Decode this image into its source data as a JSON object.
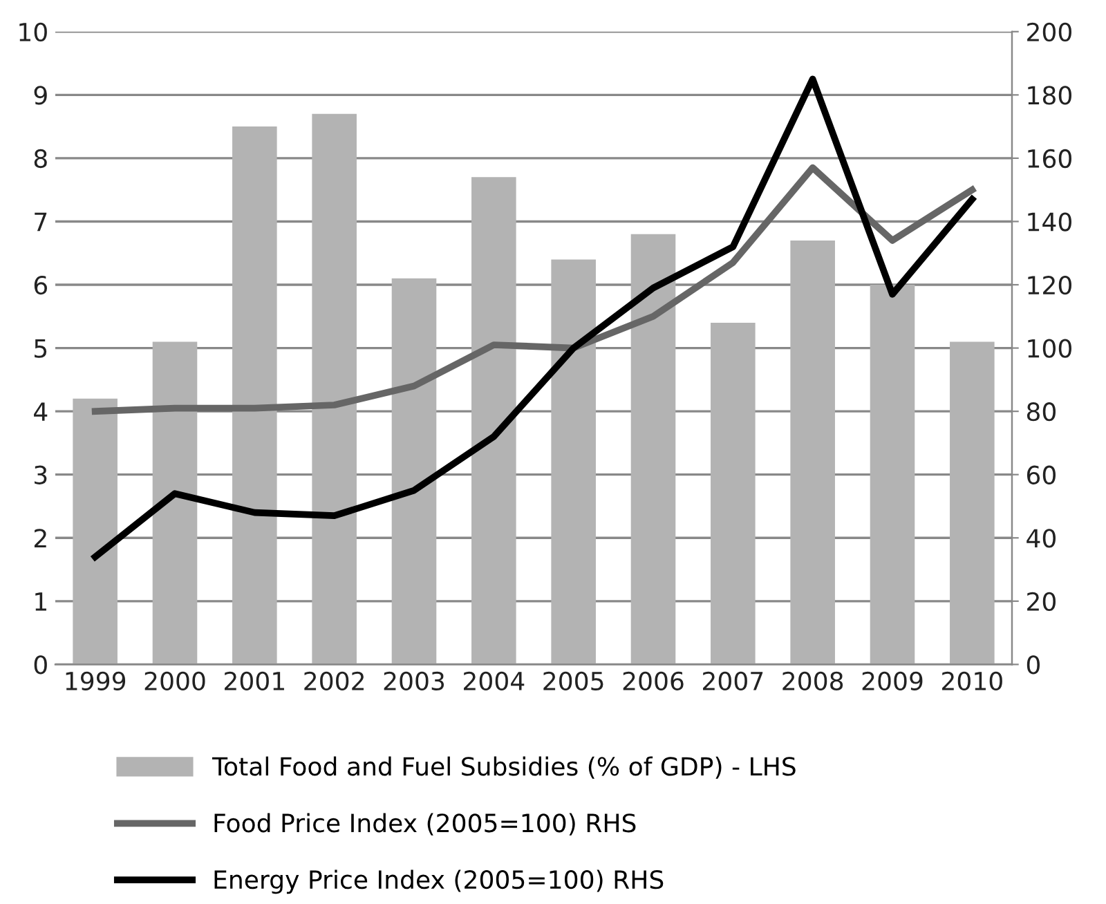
{
  "chart_data": {
    "type": "bar",
    "categories": [
      "1999",
      "2000",
      "2001",
      "2002",
      "2003",
      "2004",
      "2005",
      "2006",
      "2007",
      "2008",
      "2009",
      "2010"
    ],
    "series": [
      {
        "name": "Total Food and Fuel Subsidies (% of GDP) - LHS",
        "color": "#b3b3b3",
        "values": [
          4.2,
          5.1,
          8.5,
          8.7,
          6.1,
          7.7,
          6.4,
          6.8,
          5.4,
          6.7,
          6.0,
          5.1
        ]
      },
      {
        "name": "Food Price Index (2005=100) RHS",
        "type": "line",
        "axis": "y2",
        "color": "#666666",
        "values": [
          80,
          81,
          81,
          82,
          88,
          101,
          100,
          110,
          127,
          157,
          134,
          150
        ]
      },
      {
        "name": "Energy Price Index (2005=100) RHS",
        "type": "line",
        "axis": "y2",
        "color": "#000000",
        "values": [
          34,
          54,
          48,
          47,
          55,
          72,
          100,
          119,
          132,
          185,
          117,
          147
        ]
      }
    ],
    "ylim": [
      0,
      10
    ],
    "yticks": [
      0,
      1,
      2,
      3,
      4,
      5,
      6,
      7,
      8,
      9,
      10
    ],
    "y2lim": [
      0,
      200
    ],
    "y2ticks": [
      0,
      20,
      40,
      60,
      80,
      100,
      120,
      140,
      160,
      180,
      200
    ],
    "grid": "y",
    "legend": "bottom",
    "marker": "none",
    "line_style": "solid"
  }
}
